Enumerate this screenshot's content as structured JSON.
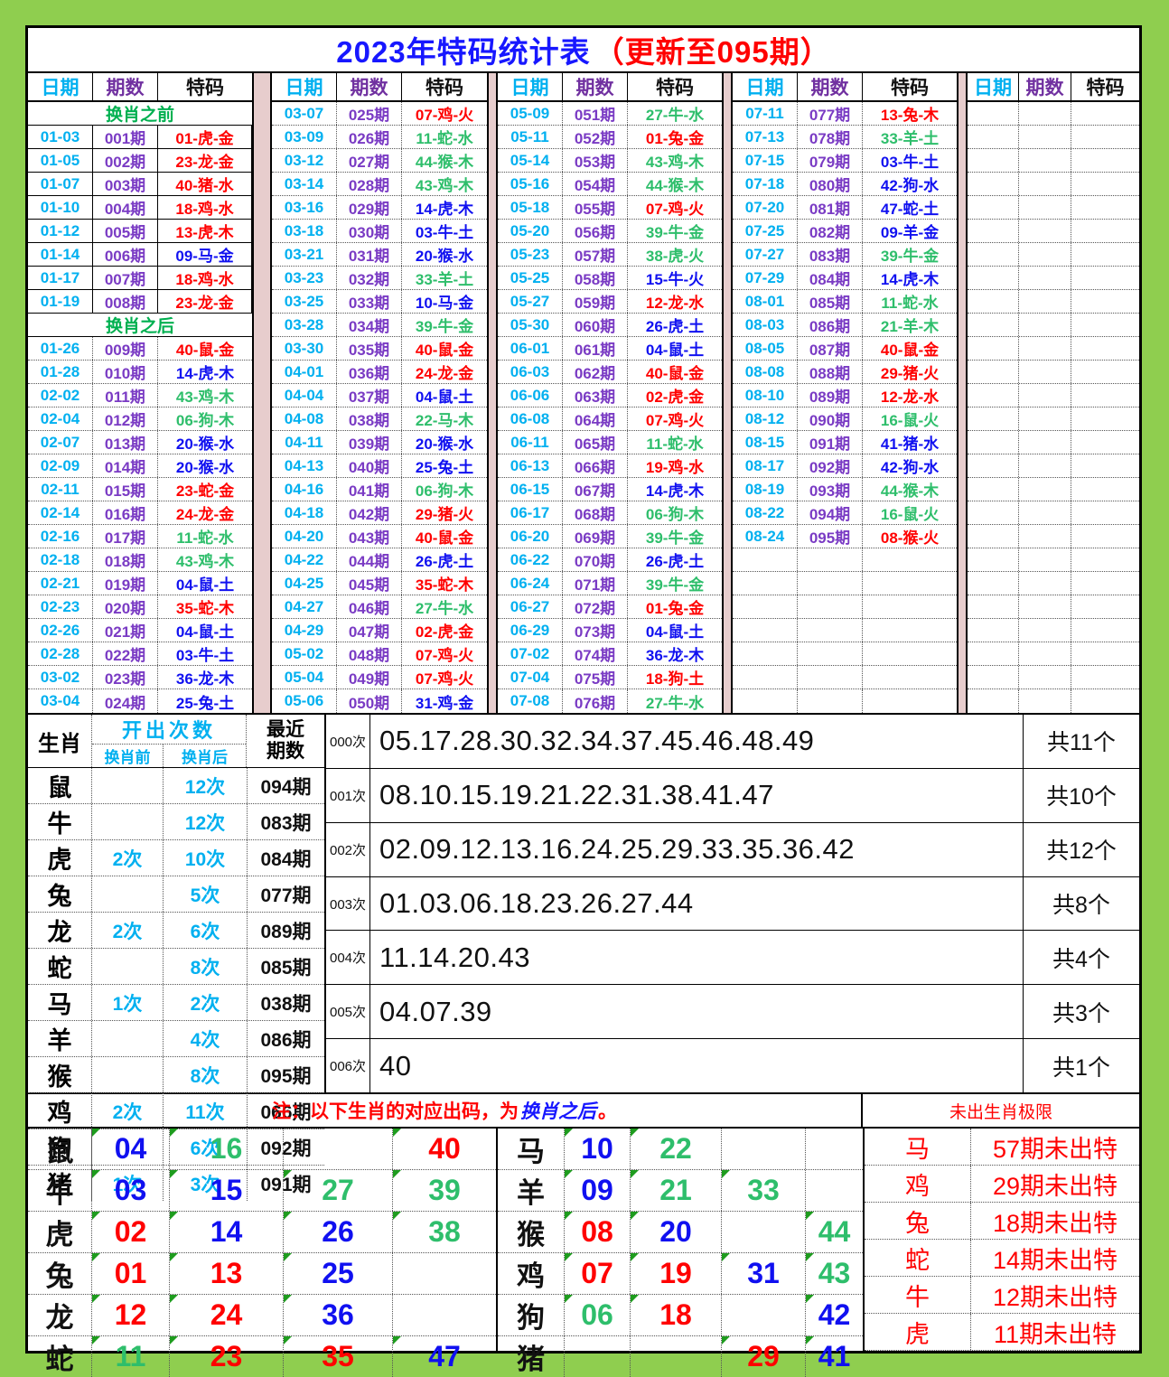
{
  "title": {
    "main": "2023年特码统计表",
    "update": "（更新至095期）"
  },
  "colors": {
    "red": "#FF0000",
    "blue": "#1010F0",
    "green": "#2EBE6B",
    "cyan": "#00B0F0",
    "purple": "#7A3BC4",
    "section_green": "#00B050",
    "pink": "#E7CDCD",
    "bg": "#8FCE4F"
  },
  "main_table": {
    "headers": [
      "日期",
      "期数",
      "特码"
    ],
    "groups": [
      {
        "items": [
          [
            "@",
            "换肖之前"
          ],
          [
            "01-03",
            "001期",
            "01-虎-金",
            "r",
            "s"
          ],
          [
            "01-05",
            "002期",
            "23-龙-金",
            "r",
            "s"
          ],
          [
            "01-07",
            "003期",
            "40-猪-水",
            "r",
            "s"
          ],
          [
            "01-10",
            "004期",
            "18-鸡-水",
            "r",
            "s"
          ],
          [
            "01-12",
            "005期",
            "13-虎-木",
            "r",
            "s"
          ],
          [
            "01-14",
            "006期",
            "09-马-金",
            "b",
            "s"
          ],
          [
            "01-17",
            "007期",
            "18-鸡-水",
            "r",
            "s"
          ],
          [
            "01-19",
            "008期",
            "23-龙-金",
            "r",
            "s"
          ],
          [
            "@",
            "换肖之后"
          ],
          [
            "01-26",
            "009期",
            "40-鼠-金",
            "r"
          ],
          [
            "01-28",
            "010期",
            "14-虎-木",
            "b"
          ],
          [
            "02-02",
            "011期",
            "43-鸡-木",
            "g"
          ],
          [
            "02-04",
            "012期",
            "06-狗-木",
            "g"
          ],
          [
            "02-07",
            "013期",
            "20-猴-水",
            "b"
          ],
          [
            "02-09",
            "014期",
            "20-猴-水",
            "b"
          ],
          [
            "02-11",
            "015期",
            "23-蛇-金",
            "r"
          ],
          [
            "02-14",
            "016期",
            "24-龙-金",
            "r"
          ],
          [
            "02-16",
            "017期",
            "11-蛇-水",
            "g"
          ],
          [
            "02-18",
            "018期",
            "43-鸡-木",
            "g"
          ],
          [
            "02-21",
            "019期",
            "04-鼠-土",
            "b"
          ],
          [
            "02-23",
            "020期",
            "35-蛇-木",
            "r"
          ],
          [
            "02-26",
            "021期",
            "04-鼠-土",
            "b"
          ],
          [
            "02-28",
            "022期",
            "03-牛-土",
            "b"
          ],
          [
            "03-02",
            "023期",
            "36-龙-木",
            "b"
          ],
          [
            "03-04",
            "024期",
            "25-兔-土",
            "b"
          ]
        ]
      },
      {
        "items": [
          [
            "03-07",
            "025期",
            "07-鸡-火",
            "r"
          ],
          [
            "03-09",
            "026期",
            "11-蛇-水",
            "g"
          ],
          [
            "03-12",
            "027期",
            "44-猴-木",
            "g"
          ],
          [
            "03-14",
            "028期",
            "43-鸡-木",
            "g"
          ],
          [
            "03-16",
            "029期",
            "14-虎-木",
            "b"
          ],
          [
            "03-18",
            "030期",
            "03-牛-土",
            "b"
          ],
          [
            "03-21",
            "031期",
            "20-猴-水",
            "b"
          ],
          [
            "03-23",
            "032期",
            "33-羊-土",
            "g"
          ],
          [
            "03-25",
            "033期",
            "10-马-金",
            "b"
          ],
          [
            "03-28",
            "034期",
            "39-牛-金",
            "g"
          ],
          [
            "03-30",
            "035期",
            "40-鼠-金",
            "r"
          ],
          [
            "04-01",
            "036期",
            "24-龙-金",
            "r"
          ],
          [
            "04-04",
            "037期",
            "04-鼠-土",
            "b"
          ],
          [
            "04-08",
            "038期",
            "22-马-木",
            "g"
          ],
          [
            "04-11",
            "039期",
            "20-猴-水",
            "b"
          ],
          [
            "04-13",
            "040期",
            "25-兔-土",
            "b"
          ],
          [
            "04-16",
            "041期",
            "06-狗-木",
            "g"
          ],
          [
            "04-18",
            "042期",
            "29-猪-火",
            "r"
          ],
          [
            "04-20",
            "043期",
            "40-鼠-金",
            "r"
          ],
          [
            "04-22",
            "044期",
            "26-虎-土",
            "b"
          ],
          [
            "04-25",
            "045期",
            "35-蛇-木",
            "r"
          ],
          [
            "04-27",
            "046期",
            "27-牛-水",
            "g"
          ],
          [
            "04-29",
            "047期",
            "02-虎-金",
            "r"
          ],
          [
            "05-02",
            "048期",
            "07-鸡-火",
            "r"
          ],
          [
            "05-04",
            "049期",
            "07-鸡-火",
            "r"
          ],
          [
            "05-06",
            "050期",
            "31-鸡-金",
            "b"
          ]
        ]
      },
      {
        "items": [
          [
            "05-09",
            "051期",
            "27-牛-水",
            "g"
          ],
          [
            "05-11",
            "052期",
            "01-兔-金",
            "r"
          ],
          [
            "05-14",
            "053期",
            "43-鸡-木",
            "g"
          ],
          [
            "05-16",
            "054期",
            "44-猴-木",
            "g"
          ],
          [
            "05-18",
            "055期",
            "07-鸡-火",
            "r"
          ],
          [
            "05-20",
            "056期",
            "39-牛-金",
            "g"
          ],
          [
            "05-23",
            "057期",
            "38-虎-火",
            "g"
          ],
          [
            "05-25",
            "058期",
            "15-牛-火",
            "b"
          ],
          [
            "05-27",
            "059期",
            "12-龙-水",
            "r"
          ],
          [
            "05-30",
            "060期",
            "26-虎-土",
            "b"
          ],
          [
            "06-01",
            "061期",
            "04-鼠-土",
            "b"
          ],
          [
            "06-03",
            "062期",
            "40-鼠-金",
            "r"
          ],
          [
            "06-06",
            "063期",
            "02-虎-金",
            "r"
          ],
          [
            "06-08",
            "064期",
            "07-鸡-火",
            "r"
          ],
          [
            "06-11",
            "065期",
            "11-蛇-水",
            "g"
          ],
          [
            "06-13",
            "066期",
            "19-鸡-水",
            "r"
          ],
          [
            "06-15",
            "067期",
            "14-虎-木",
            "b"
          ],
          [
            "06-17",
            "068期",
            "06-狗-木",
            "g"
          ],
          [
            "06-20",
            "069期",
            "39-牛-金",
            "g"
          ],
          [
            "06-22",
            "070期",
            "26-虎-土",
            "b"
          ],
          [
            "06-24",
            "071期",
            "39-牛-金",
            "g"
          ],
          [
            "06-27",
            "072期",
            "01-兔-金",
            "r"
          ],
          [
            "06-29",
            "073期",
            "04-鼠-土",
            "b"
          ],
          [
            "07-02",
            "074期",
            "36-龙-木",
            "b"
          ],
          [
            "07-04",
            "075期",
            "18-狗-土",
            "r"
          ],
          [
            "07-08",
            "076期",
            "27-牛-水",
            "g"
          ]
        ]
      },
      {
        "items": [
          [
            "07-11",
            "077期",
            "13-兔-木",
            "r"
          ],
          [
            "07-13",
            "078期",
            "33-羊-土",
            "g"
          ],
          [
            "07-15",
            "079期",
            "03-牛-土",
            "b"
          ],
          [
            "07-18",
            "080期",
            "42-狗-水",
            "b"
          ],
          [
            "07-20",
            "081期",
            "47-蛇-土",
            "b"
          ],
          [
            "07-25",
            "082期",
            "09-羊-金",
            "b"
          ],
          [
            "07-27",
            "083期",
            "39-牛-金",
            "g"
          ],
          [
            "07-29",
            "084期",
            "14-虎-木",
            "b"
          ],
          [
            "08-01",
            "085期",
            "11-蛇-水",
            "g"
          ],
          [
            "08-03",
            "086期",
            "21-羊-木",
            "g"
          ],
          [
            "08-05",
            "087期",
            "40-鼠-金",
            "r"
          ],
          [
            "08-08",
            "088期",
            "29-猪-火",
            "r"
          ],
          [
            "08-10",
            "089期",
            "12-龙-水",
            "r"
          ],
          [
            "08-12",
            "090期",
            "16-鼠-火",
            "g"
          ],
          [
            "08-15",
            "091期",
            "41-猪-水",
            "b"
          ],
          [
            "08-17",
            "092期",
            "42-狗-水",
            "b"
          ],
          [
            "08-19",
            "093期",
            "44-猴-木",
            "g"
          ],
          [
            "08-22",
            "094期",
            "16-鼠-火",
            "g"
          ],
          [
            "08-24",
            "095期",
            "08-猴-火",
            "r"
          ],
          [
            "",
            "",
            "",
            ""
          ],
          [
            "",
            "",
            "",
            ""
          ],
          [
            "",
            "",
            "",
            ""
          ],
          [
            "",
            "",
            "",
            ""
          ],
          [
            "",
            "",
            "",
            ""
          ],
          [
            "",
            "",
            "",
            ""
          ],
          [
            "",
            "",
            "",
            ""
          ]
        ]
      },
      {
        "items": [
          [
            "",
            "",
            "",
            ""
          ],
          [
            "",
            "",
            "",
            ""
          ],
          [
            "",
            "",
            "",
            ""
          ],
          [
            "",
            "",
            "",
            ""
          ],
          [
            "",
            "",
            "",
            ""
          ],
          [
            "",
            "",
            "",
            ""
          ],
          [
            "",
            "",
            "",
            ""
          ],
          [
            "",
            "",
            "",
            ""
          ],
          [
            "",
            "",
            "",
            ""
          ],
          [
            "",
            "",
            "",
            ""
          ],
          [
            "",
            "",
            "",
            ""
          ],
          [
            "",
            "",
            "",
            ""
          ],
          [
            "",
            "",
            "",
            ""
          ],
          [
            "",
            "",
            "",
            ""
          ],
          [
            "",
            "",
            "",
            ""
          ],
          [
            "",
            "",
            "",
            ""
          ],
          [
            "",
            "",
            "",
            ""
          ],
          [
            "",
            "",
            "",
            ""
          ],
          [
            "",
            "",
            "",
            ""
          ],
          [
            "",
            "",
            "",
            ""
          ],
          [
            "",
            "",
            "",
            ""
          ],
          [
            "",
            "",
            "",
            ""
          ],
          [
            "",
            "",
            "",
            ""
          ],
          [
            "",
            "",
            "",
            ""
          ],
          [
            "",
            "",
            "",
            ""
          ],
          [
            "",
            "",
            "",
            ""
          ]
        ]
      }
    ]
  },
  "zodiac_stats": {
    "zodiac_header": "生肖",
    "count_header": "开出次数",
    "before_header": "换肖前",
    "after_header": "换肖后",
    "recent_header": "最近期数",
    "rows": [
      [
        "鼠",
        "",
        "12次",
        "094期"
      ],
      [
        "牛",
        "",
        "12次",
        "083期"
      ],
      [
        "虎",
        "2次",
        "10次",
        "084期"
      ],
      [
        "兔",
        "",
        "5次",
        "077期"
      ],
      [
        "龙",
        "2次",
        "6次",
        "089期"
      ],
      [
        "蛇",
        "",
        "8次",
        "085期"
      ],
      [
        "马",
        "1次",
        "2次",
        "038期"
      ],
      [
        "羊",
        "",
        "4次",
        "086期"
      ],
      [
        "猴",
        "",
        "8次",
        "095期"
      ],
      [
        "鸡",
        "2次",
        "11次",
        "066期"
      ],
      [
        "狗",
        "",
        "6次",
        "092期"
      ],
      [
        "猪",
        "1次",
        "3次",
        "091期"
      ]
    ]
  },
  "frequency": {
    "rows": [
      [
        "000次",
        "05.17.28.30.32.34.37.45.46.48.49",
        "共11个"
      ],
      [
        "001次",
        "08.10.15.19.21.22.31.38.41.47",
        "共10个"
      ],
      [
        "002次",
        "02.09.12.13.16.24.25.29.33.35.36.42",
        "共12个"
      ],
      [
        "003次",
        "01.03.06.18.23.26.27.44",
        "共8个"
      ],
      [
        "004次",
        "11.14.20.43",
        "共4个"
      ],
      [
        "005次",
        "04.07.39",
        "共3个"
      ],
      [
        "006次",
        "40",
        "共1个"
      ]
    ]
  },
  "note": {
    "prefix": "注：以下生肖的对应出码，为",
    "highlight": "换肖之后",
    "suffix": "。"
  },
  "mapping_left": [
    [
      "鼠",
      [
        "04",
        "b"
      ],
      [
        "16",
        "g"
      ],
      [
        "",
        ""
      ],
      [
        "40",
        "r"
      ]
    ],
    [
      "牛",
      [
        "03",
        "b"
      ],
      [
        "15",
        "b"
      ],
      [
        "27",
        "g"
      ],
      [
        "39",
        "g"
      ]
    ],
    [
      "虎",
      [
        "02",
        "r"
      ],
      [
        "14",
        "b"
      ],
      [
        "26",
        "b"
      ],
      [
        "38",
        "g"
      ]
    ],
    [
      "兔",
      [
        "01",
        "r"
      ],
      [
        "13",
        "r"
      ],
      [
        "25",
        "b"
      ],
      [
        "",
        ""
      ]
    ],
    [
      "龙",
      [
        "12",
        "r"
      ],
      [
        "24",
        "r"
      ],
      [
        "36",
        "b"
      ],
      [
        "",
        ""
      ]
    ],
    [
      "蛇",
      [
        "11",
        "g"
      ],
      [
        "23",
        "r"
      ],
      [
        "35",
        "r"
      ],
      [
        "47",
        "b"
      ]
    ]
  ],
  "mapping_right": [
    [
      "马",
      [
        "10",
        "b"
      ],
      [
        "22",
        "g"
      ],
      [
        "",
        ""
      ],
      [
        "",
        ""
      ]
    ],
    [
      "羊",
      [
        "09",
        "b"
      ],
      [
        "21",
        "g"
      ],
      [
        "33",
        "g"
      ],
      [
        "",
        ""
      ]
    ],
    [
      "猴",
      [
        "08",
        "r"
      ],
      [
        "20",
        "b"
      ],
      [
        "",
        ""
      ],
      [
        "44",
        "g"
      ]
    ],
    [
      "鸡",
      [
        "07",
        "r"
      ],
      [
        "19",
        "r"
      ],
      [
        "31",
        "b"
      ],
      [
        "43",
        "g"
      ]
    ],
    [
      "狗",
      [
        "06",
        "g"
      ],
      [
        "18",
        "r"
      ],
      [
        "",
        ""
      ],
      [
        "42",
        "b"
      ]
    ],
    [
      "猪",
      [
        "",
        ""
      ],
      [
        "",
        ""
      ],
      [
        "29",
        "r"
      ],
      [
        "41",
        "b"
      ]
    ]
  ],
  "limits": {
    "title": "未出生肖极限",
    "rows": [
      [
        "马",
        "57期未出特"
      ],
      [
        "鸡",
        "29期未出特"
      ],
      [
        "兔",
        "18期未出特"
      ],
      [
        "蛇",
        "14期未出特"
      ],
      [
        "牛",
        "12期未出特"
      ],
      [
        "虎",
        "11期未出特"
      ]
    ]
  }
}
